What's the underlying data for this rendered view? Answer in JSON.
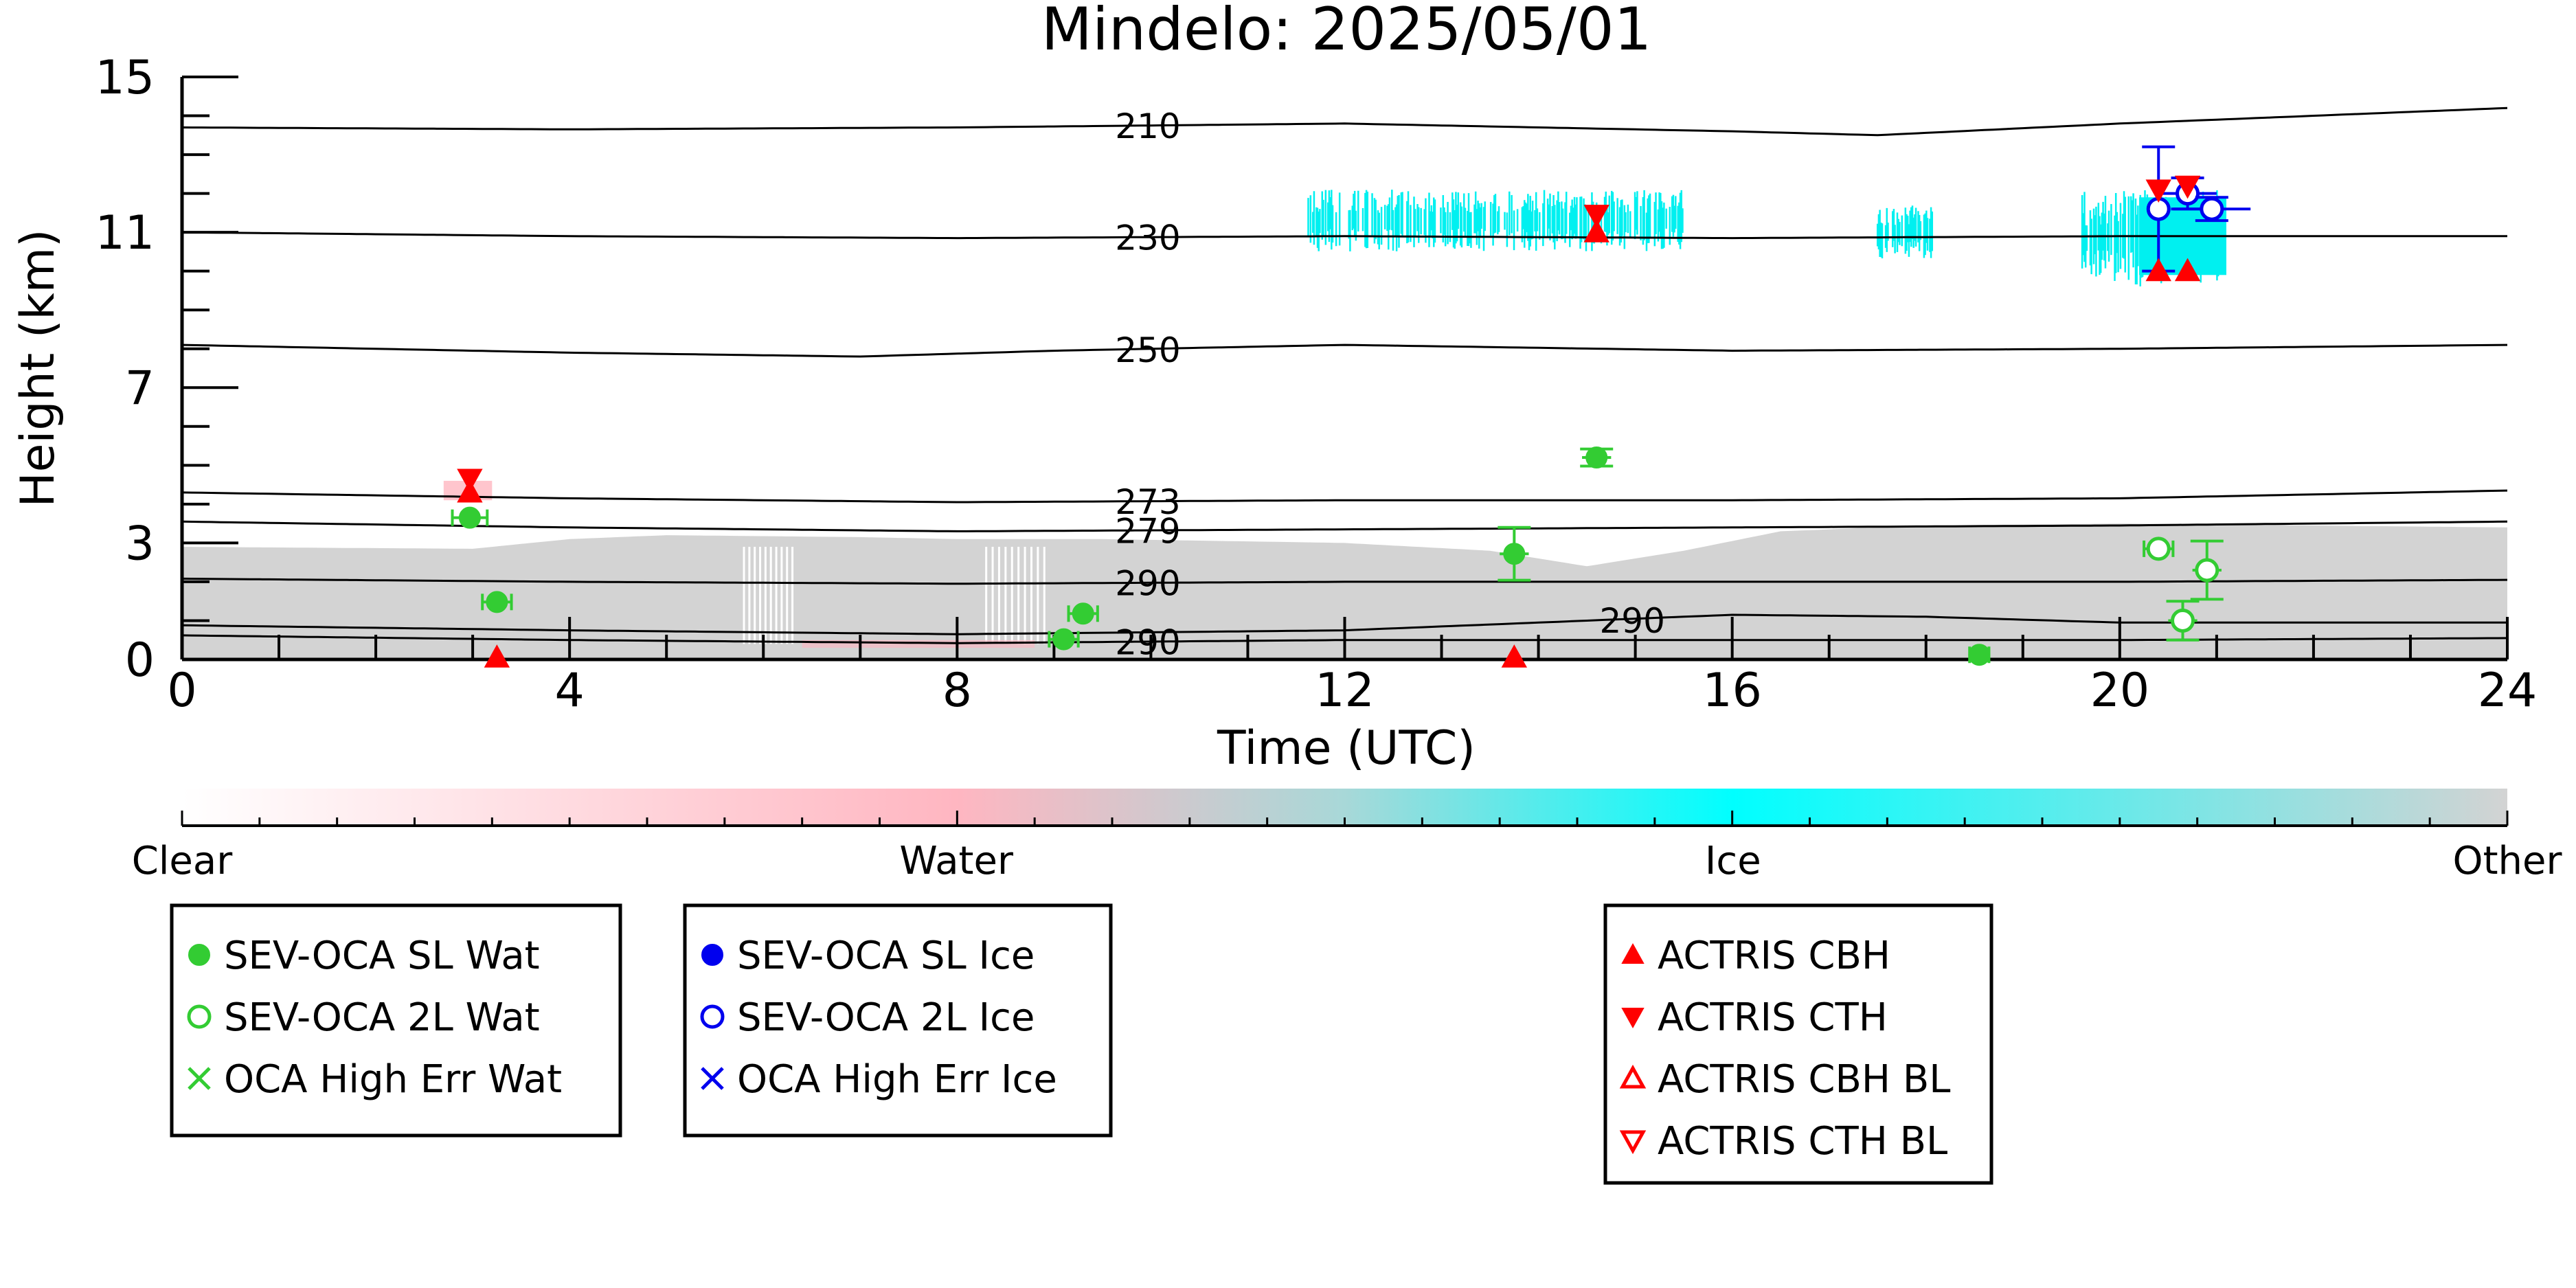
{
  "chart_data": {
    "type": "scatter",
    "title": "Mindelo: 2025/05/01",
    "xlabel": "Time (UTC)",
    "ylabel": "Height (km)",
    "xlim": [
      0,
      24
    ],
    "ylim": [
      0,
      15
    ],
    "x_ticks": [
      0,
      4,
      8,
      12,
      16,
      20,
      24
    ],
    "y_ticks": [
      0,
      3,
      7,
      11,
      15
    ],
    "grid": false,
    "legend_placement": "below",
    "colors": {
      "water": "#33cc33",
      "ice": "#0000ee",
      "actris": "#ff0000",
      "cyan": "#00f0f0",
      "gray": "#d3d3d3",
      "pink": "#ffb6c1"
    },
    "temperature_contours": [
      {
        "label": "210",
        "label_x": 9.6,
        "x": [
          0,
          4,
          8,
          12,
          16,
          17.5,
          20,
          24
        ],
        "y": [
          13.7,
          13.65,
          13.7,
          13.8,
          13.6,
          13.5,
          13.8,
          14.2
        ]
      },
      {
        "label": "230",
        "label_x": 9.6,
        "x": [
          0,
          4,
          8,
          12,
          16,
          20,
          24
        ],
        "y": [
          11.0,
          10.9,
          10.85,
          10.9,
          10.85,
          10.9,
          10.9
        ]
      },
      {
        "label": "250",
        "label_x": 9.6,
        "x": [
          0,
          4,
          7,
          9,
          12,
          16,
          20,
          24
        ],
        "y": [
          8.1,
          7.9,
          7.8,
          7.95,
          8.1,
          7.95,
          8.0,
          8.1
        ]
      },
      {
        "label": "273",
        "label_x": 9.6,
        "x": [
          0,
          4,
          8,
          12,
          16,
          20,
          24
        ],
        "y": [
          4.3,
          4.15,
          4.05,
          4.1,
          4.1,
          4.15,
          4.35
        ]
      },
      {
        "label": "279",
        "label_x": 9.6,
        "x": [
          0,
          4,
          8,
          12,
          16,
          20,
          24
        ],
        "y": [
          3.55,
          3.4,
          3.3,
          3.35,
          3.4,
          3.45,
          3.55
        ]
      },
      {
        "label": "290",
        "label_x": 9.6,
        "x": [
          0,
          4,
          8,
          12,
          16,
          20,
          24
        ],
        "y": [
          2.08,
          2.0,
          1.95,
          2.0,
          2.0,
          2.0,
          2.05
        ]
      },
      {
        "label": "290",
        "label_x": 14.6,
        "x": [
          0,
          4,
          8,
          12,
          14,
          16,
          18,
          20,
          24
        ],
        "y": [
          0.88,
          0.75,
          0.65,
          0.75,
          0.95,
          1.15,
          1.1,
          0.95,
          0.95
        ]
      },
      {
        "label": "290",
        "label_x": 9.6,
        "x": [
          0,
          4,
          8,
          12,
          16,
          20,
          24
        ],
        "y": [
          0.62,
          0.5,
          0.42,
          0.5,
          0.5,
          0.5,
          0.55
        ]
      }
    ],
    "series": [
      {
        "name": "SEV-OCA SL Wat",
        "marker": "filled-circle",
        "color": "#33cc33",
        "points": [
          {
            "x": 2.97,
            "y": 3.65,
            "xerr": 0.18,
            "yerr": 0
          },
          {
            "x": 3.25,
            "y": 1.48,
            "xerr": 0.15,
            "yerr": 0
          },
          {
            "x": 9.3,
            "y": 1.18,
            "xerr": 0.15,
            "yerr": 0
          },
          {
            "x": 9.1,
            "y": 0.52,
            "xerr": 0.15,
            "yerr": 0
          },
          {
            "x": 13.75,
            "y": 2.72,
            "xerr": 0.15,
            "yerr": 0.68
          },
          {
            "x": 14.6,
            "y": 5.2,
            "xerr": 0.15,
            "yerr": 0.22
          },
          {
            "x": 18.55,
            "y": 0.12,
            "xerr": 0.1,
            "yerr": 0
          }
        ]
      },
      {
        "name": "SEV-OCA 2L Wat",
        "marker": "open-circle",
        "color": "#33cc33",
        "points": [
          {
            "x": 20.4,
            "y": 2.85,
            "xerr": 0.15,
            "yerr": 0
          },
          {
            "x": 20.9,
            "y": 2.3,
            "xerr": 0.15,
            "yerr": 0.75
          },
          {
            "x": 20.65,
            "y": 1.0,
            "xerr": 0.15,
            "yerr": 0.5
          }
        ]
      },
      {
        "name": "OCA High Err Wat",
        "marker": "x",
        "color": "#33cc33",
        "points": []
      },
      {
        "name": "SEV-OCA SL Ice",
        "marker": "filled-circle",
        "color": "#0000ee",
        "points": []
      },
      {
        "name": "SEV-OCA 2L Ice",
        "marker": "open-circle",
        "color": "#0000ee",
        "points": [
          {
            "x": 20.4,
            "y": 11.6,
            "xerr": 0.1,
            "yerr": 1.6
          },
          {
            "x": 20.7,
            "y": 12.0,
            "xerr": 0.3,
            "yerr": 0.4
          },
          {
            "x": 20.95,
            "y": 11.6,
            "xerr": 0.4,
            "yerr": 0.3
          }
        ]
      },
      {
        "name": "OCA High Err Ice",
        "marker": "x",
        "color": "#0000ee",
        "points": []
      },
      {
        "name": "ACTRIS CBH",
        "marker": "triangle-up",
        "color": "#ff0000",
        "points": [
          {
            "x": 2.97,
            "y": 4.3
          },
          {
            "x": 3.25,
            "y": 0.05
          },
          {
            "x": 13.75,
            "y": 0.05
          },
          {
            "x": 14.6,
            "y": 11.0
          },
          {
            "x": 20.4,
            "y": 10.0
          },
          {
            "x": 20.7,
            "y": 10.0
          }
        ]
      },
      {
        "name": "ACTRIS CTH",
        "marker": "triangle-down",
        "color": "#ff0000",
        "points": [
          {
            "x": 2.97,
            "y": 4.65
          },
          {
            "x": 14.6,
            "y": 11.45
          },
          {
            "x": 20.4,
            "y": 12.1
          },
          {
            "x": 20.7,
            "y": 12.2
          }
        ]
      },
      {
        "name": "ACTRIS CBH BL",
        "marker": "open-triangle-up",
        "color": "#ff0000",
        "points": []
      },
      {
        "name": "ACTRIS CTH BL",
        "marker": "open-triangle-down",
        "color": "#ff0000",
        "points": []
      }
    ],
    "background_classification": {
      "gray_boundary": {
        "x": [
          0,
          3,
          4,
          5,
          7,
          8,
          9.5,
          12,
          13.5,
          14.5,
          15.5,
          16.5,
          18,
          20,
          22,
          24
        ],
        "y": [
          2.9,
          2.85,
          3.1,
          3.2,
          3.15,
          3.1,
          3.1,
          3.0,
          2.8,
          2.4,
          2.8,
          3.3,
          3.45,
          3.5,
          3.45,
          3.4
        ]
      },
      "ice_regions": [
        {
          "x0": 11.6,
          "x1": 15.5,
          "y0": 10.5,
          "y1": 12.1
        },
        {
          "x0": 17.5,
          "x1": 18.1,
          "y0": 10.3,
          "y1": 11.7
        },
        {
          "x0": 19.6,
          "x1": 21.1,
          "y0": 9.6,
          "y1": 12.1
        }
      ]
    },
    "colorbar": {
      "labels": [
        "Clear",
        "Water",
        "Ice",
        "Other"
      ],
      "label_positions": [
        0,
        0.333,
        0.667,
        1.0
      ],
      "stops": [
        {
          "pos": 0.0,
          "color": "#ffffff"
        },
        {
          "pos": 0.333,
          "color": "#ffb6c1"
        },
        {
          "pos": 0.5,
          "color": "#a8d8d8"
        },
        {
          "pos": 0.667,
          "color": "#00ffff"
        },
        {
          "pos": 1.0,
          "color": "#d3d3d3"
        }
      ]
    },
    "legend_groups": [
      [
        "SEV-OCA SL Wat",
        "SEV-OCA 2L Wat",
        "OCA High Err Wat"
      ],
      [
        "SEV-OCA SL Ice",
        "SEV-OCA 2L Ice",
        "OCA High Err Ice"
      ],
      [
        "ACTRIS CBH",
        "ACTRIS CTH",
        "ACTRIS CBH BL",
        "ACTRIS CTH BL"
      ]
    ]
  }
}
